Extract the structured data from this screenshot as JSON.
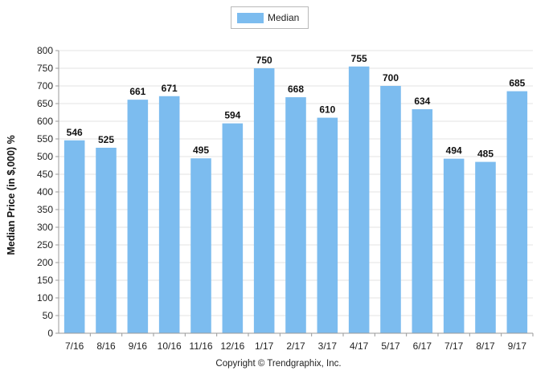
{
  "chart_data": {
    "type": "bar",
    "title": "",
    "xlabel": "",
    "ylabel": "Median Price (in $,000) %",
    "legend": {
      "placement": "top-center",
      "entries": [
        "Median"
      ]
    },
    "categories": [
      "7/16",
      "8/16",
      "9/16",
      "10/16",
      "11/16",
      "12/16",
      "1/17",
      "2/17",
      "3/17",
      "4/17",
      "5/17",
      "6/17",
      "7/17",
      "8/17",
      "9/17"
    ],
    "series": [
      {
        "name": "Median",
        "values": [
          546,
          525,
          661,
          671,
          495,
          594,
          750,
          668,
          610,
          755,
          700,
          634,
          494,
          485,
          685
        ]
      }
    ],
    "ylim": [
      0,
      800
    ],
    "yticks": [
      0,
      50,
      100,
      150,
      200,
      250,
      300,
      350,
      400,
      450,
      500,
      550,
      600,
      650,
      700,
      750,
      800
    ],
    "grid": true,
    "data_labels": true,
    "colors": {
      "bar": "#7cbcef",
      "grid": "#e3e3e3",
      "axis": "#9a9a9a"
    }
  },
  "footer": {
    "copyright": "Copyright © Trendgraphix, Inc."
  }
}
